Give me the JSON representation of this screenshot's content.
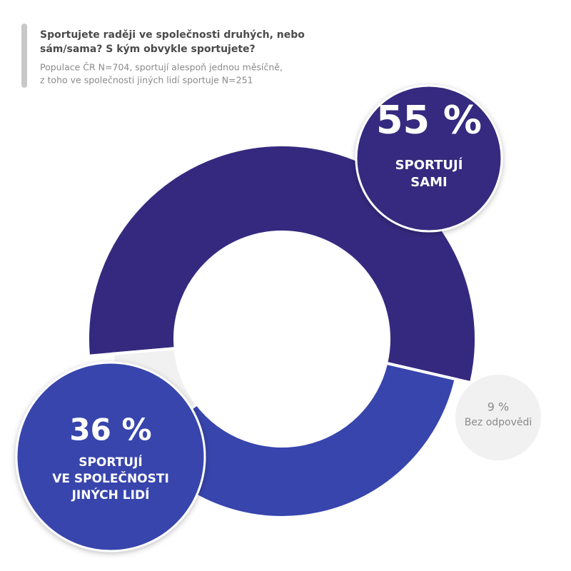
{
  "chart_data": {
    "type": "donut",
    "title": [
      "Sportujete raději ve společnosti druhých, nebo",
      "sám/sama? S kým obvykle sportujete?"
    ],
    "subtitle": [
      "Populace ČR N=704, sportují alespoň jednou měsíčně,",
      "z toho ve společnosti jiných lidí sportuje N=251"
    ],
    "categories": [
      [
        "SPORTUJÍ",
        "SAMI"
      ],
      [
        "SPORTUJÍ",
        "VE SPOLEČNOSTI",
        "JINÝCH LIDÍ"
      ],
      [
        "Bez odpovědi"
      ]
    ],
    "values": [
      55,
      36,
      9
    ],
    "value_labels": [
      "55 %",
      "36 %",
      "9 %"
    ],
    "colors": [
      "#35297f",
      "#3745ad",
      "#f1f1f1"
    ]
  }
}
